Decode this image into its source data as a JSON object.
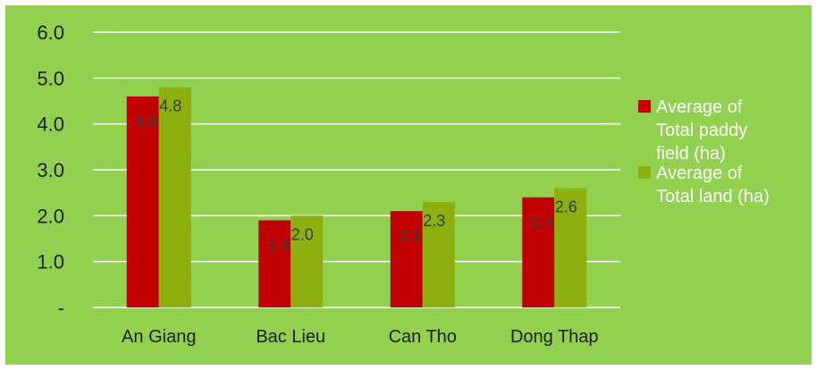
{
  "chart_data": {
    "type": "bar",
    "categories": [
      "An Giang",
      "Bac Lieu",
      "Can Tho",
      "Dong Thap"
    ],
    "series": [
      {
        "name": "Average of Total paddy field (ha)",
        "values": [
          4.6,
          1.9,
          2.1,
          2.4
        ],
        "data_labels": [
          "4.6",
          "1.9",
          "2.1",
          "2.4"
        ]
      },
      {
        "name": "Average of Total land (ha)",
        "values": [
          4.8,
          2.0,
          2.3,
          2.6
        ],
        "data_labels": [
          "4.8",
          "2.0",
          "2.3",
          "2.6"
        ]
      }
    ],
    "y_ticks": [
      "-",
      "1.0",
      "2.0",
      "3.0",
      "4.0",
      "5.0",
      "6.0"
    ],
    "ylim": [
      0,
      6
    ],
    "grid": true,
    "legend_position": "right",
    "colors": {
      "background": "#92d050",
      "series_1": "#c00000",
      "series_2": "#8db010",
      "gridline": "#ffffff"
    },
    "legend_lines": [
      [
        "Average of",
        "Total paddy",
        "field (ha)"
      ],
      [
        "Average of",
        "Total land (ha)"
      ]
    ]
  }
}
